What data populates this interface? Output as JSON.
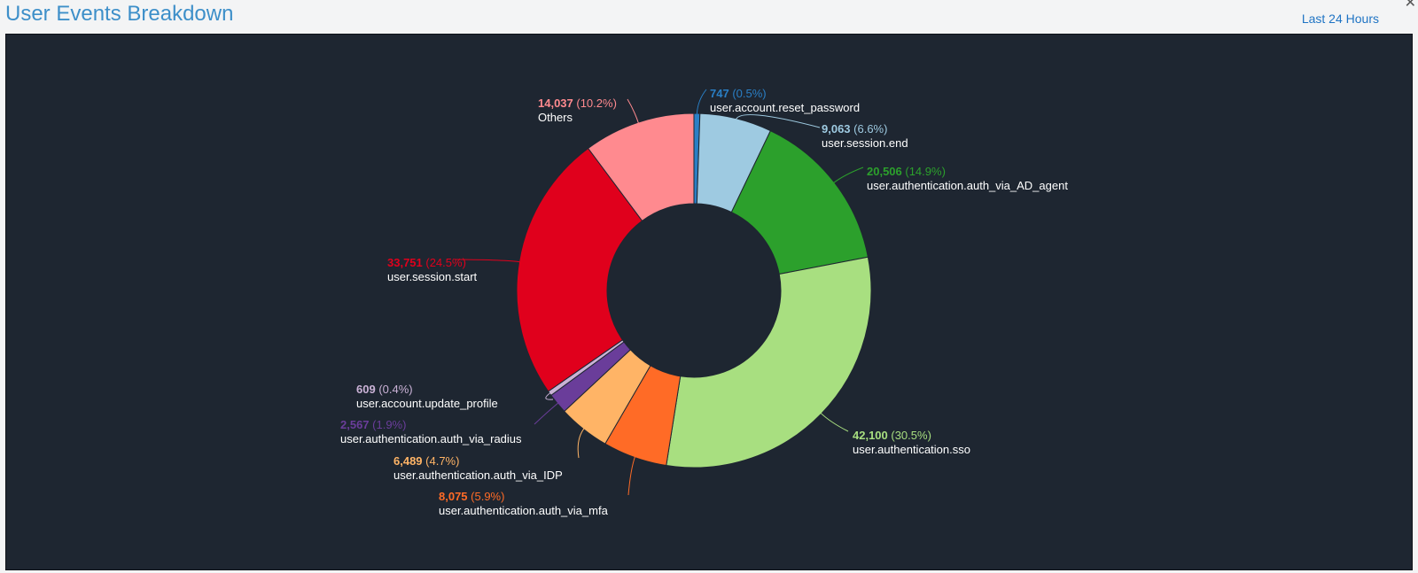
{
  "header": {
    "title": "User Events Breakdown",
    "time_range": "Last 24 Hours",
    "close_glyph": "✕"
  },
  "chart_data": {
    "type": "pie",
    "donut": true,
    "slices": [
      {
        "name": "user.account.reset_password",
        "value": 747,
        "percent": "0.5%",
        "value_text": "747",
        "color": "#2a7fc5"
      },
      {
        "name": "user.session.end",
        "value": 9063,
        "percent": "6.6%",
        "value_text": "9,063",
        "color": "#9ecae1"
      },
      {
        "name": "user.authentication.auth_via_AD_agent",
        "value": 20506,
        "percent": "14.9%",
        "value_text": "20,506",
        "color": "#2ca02c"
      },
      {
        "name": "user.authentication.sso",
        "value": 42100,
        "percent": "30.5%",
        "value_text": "42,100",
        "color": "#a8df80"
      },
      {
        "name": "user.authentication.auth_via_mfa",
        "value": 8075,
        "percent": "5.9%",
        "value_text": "8,075",
        "color": "#ff6b26"
      },
      {
        "name": "user.authentication.auth_via_IDP",
        "value": 6489,
        "percent": "4.7%",
        "value_text": "6,489",
        "color": "#ffb466"
      },
      {
        "name": "user.authentication.auth_via_radius",
        "value": 2567,
        "percent": "1.9%",
        "value_text": "2,567",
        "color": "#6a3d9a"
      },
      {
        "name": "user.account.update_profile",
        "value": 609,
        "percent": "0.4%",
        "value_text": "609",
        "color": "#cab2d6"
      },
      {
        "name": "user.session.start",
        "value": 33751,
        "percent": "24.5%",
        "value_text": "33,751",
        "color": "#e0001c"
      },
      {
        "name": "Others",
        "value": 14037,
        "percent": "10.2%",
        "value_text": "14,037",
        "color": "#ff8a8f"
      }
    ]
  }
}
